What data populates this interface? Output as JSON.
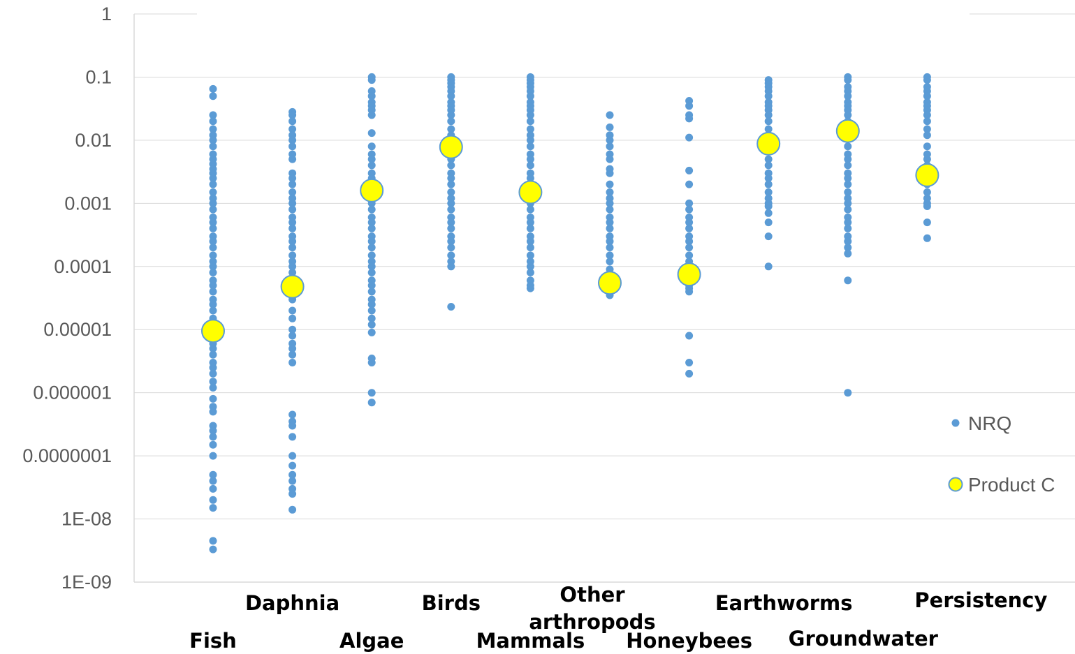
{
  "chart_data": {
    "type": "scatter",
    "y_scale": "log",
    "ylim": [
      1e-09,
      1
    ],
    "y_ticks": [
      "1",
      "0.1",
      "0.01",
      "0.001",
      "0.0001",
      "0.00001",
      "0.000001",
      "0.0000001",
      "1E-08",
      "1E-09"
    ],
    "grid": true,
    "legend_position": "right",
    "categories": [
      "Fish",
      "Daphnia",
      "Algae",
      "Birds",
      "Mammals",
      "Other arthropods",
      "Honeybees",
      "Earthworms",
      "Groundwater",
      "Persistency"
    ],
    "series": [
      {
        "name": "NRQ",
        "color": "#5b9bd5",
        "points": [
          {
            "category": "Fish",
            "values": [
              0.065,
              0.05,
              0.025,
              0.02,
              0.015,
              0.012,
              0.01,
              0.008,
              0.006,
              0.005,
              0.0042,
              0.0035,
              0.003,
              0.0025,
              0.002,
              0.0015,
              0.0012,
              0.001,
              0.0008,
              0.0006,
              0.0005,
              0.0004,
              0.0003,
              0.00025,
              0.0002,
              0.00015,
              0.00012,
              0.0001,
              8e-05,
              6e-05,
              5e-05,
              4e-05,
              3e-05,
              2.5e-05,
              2e-05,
              1.5e-05,
              1.2e-05,
              1e-05,
              8e-06,
              6e-06,
              5e-06,
              4e-06,
              3e-06,
              2.5e-06,
              2e-06,
              1.5e-06,
              1.2e-06,
              8e-07,
              6e-07,
              5e-07,
              3e-07,
              2.5e-07,
              2e-07,
              1.5e-07,
              1e-07,
              5e-08,
              4e-08,
              3e-08,
              2e-08,
              1.5e-08,
              4.5e-09,
              3.3e-09
            ]
          },
          {
            "category": "Daphnia",
            "values": [
              0.028,
              0.025,
              0.02,
              0.015,
              0.012,
              0.01,
              0.008,
              0.006,
              0.005,
              0.003,
              0.0025,
              0.002,
              0.0015,
              0.0012,
              0.001,
              0.0008,
              0.0006,
              0.0005,
              0.0004,
              0.0003,
              0.00025,
              0.0002,
              0.00015,
              0.00012,
              0.0001,
              8e-05,
              6e-05,
              4e-05,
              3e-05,
              2e-05,
              1.5e-05,
              1e-05,
              8e-06,
              6e-06,
              5e-06,
              4e-06,
              3e-06,
              4.5e-07,
              3.5e-07,
              3e-07,
              2e-07,
              1e-07,
              7e-08,
              5e-08,
              4e-08,
              3e-08,
              2.5e-08,
              1.4e-08
            ]
          },
          {
            "category": "Algae",
            "values": [
              0.1,
              0.09,
              0.06,
              0.05,
              0.04,
              0.035,
              0.03,
              0.025,
              0.013,
              0.008,
              0.006,
              0.005,
              0.004,
              0.003,
              0.0025,
              0.002,
              0.0015,
              0.0012,
              0.001,
              0.0008,
              0.0006,
              0.0005,
              0.0004,
              0.0003,
              0.00025,
              0.0002,
              0.00015,
              0.00012,
              0.0001,
              8e-05,
              6e-05,
              5e-05,
              4e-05,
              3e-05,
              2.5e-05,
              2e-05,
              1.5e-05,
              1.2e-05,
              9e-06,
              3.5e-06,
              3e-06,
              1e-06,
              7e-07
            ]
          },
          {
            "category": "Birds",
            "values": [
              0.1,
              0.09,
              0.08,
              0.07,
              0.06,
              0.05,
              0.04,
              0.035,
              0.03,
              0.025,
              0.02,
              0.015,
              0.012,
              0.01,
              0.006,
              0.005,
              0.004,
              0.003,
              0.0025,
              0.002,
              0.0015,
              0.0012,
              0.001,
              0.0008,
              0.0006,
              0.0005,
              0.0004,
              0.0003,
              0.00025,
              0.0002,
              0.00015,
              0.00012,
              0.0001,
              2.3e-05
            ]
          },
          {
            "category": "Mammals",
            "values": [
              0.1,
              0.09,
              0.08,
              0.07,
              0.06,
              0.05,
              0.04,
              0.035,
              0.03,
              0.025,
              0.02,
              0.015,
              0.012,
              0.01,
              0.008,
              0.006,
              0.005,
              0.004,
              0.003,
              0.0025,
              0.002,
              0.001,
              0.0008,
              0.0006,
              0.0005,
              0.0004,
              0.0003,
              0.00025,
              0.0002,
              0.00015,
              0.00012,
              0.0001,
              8e-05,
              6e-05,
              5e-05,
              4.5e-05
            ]
          },
          {
            "category": "Other arthropods",
            "values": [
              0.025,
              0.016,
              0.012,
              0.01,
              0.008,
              0.006,
              0.005,
              0.0035,
              0.003,
              0.002,
              0.0015,
              0.0012,
              0.001,
              0.0008,
              0.0006,
              0.0005,
              0.0004,
              0.0003,
              0.00025,
              0.0002,
              0.00015,
              0.00012,
              9e-05,
              4e-05,
              3.5e-05
            ]
          },
          {
            "category": "Honeybees",
            "values": [
              0.042,
              0.035,
              0.025,
              0.022,
              0.011,
              0.0033,
              0.002,
              0.001,
              0.0008,
              0.0006,
              0.0005,
              0.0004,
              0.0003,
              0.00025,
              0.0002,
              0.00015,
              0.00012,
              0.0001,
              5e-05,
              4.5e-05,
              4e-05,
              8e-06,
              3e-06,
              2e-06
            ]
          },
          {
            "category": "Earthworms",
            "values": [
              0.09,
              0.08,
              0.07,
              0.06,
              0.05,
              0.04,
              0.035,
              0.03,
              0.025,
              0.02,
              0.015,
              0.012,
              0.01,
              0.005,
              0.004,
              0.003,
              0.0025,
              0.002,
              0.0015,
              0.0012,
              0.001,
              0.0009,
              0.0007,
              0.0005,
              0.0003,
              0.0001
            ]
          },
          {
            "category": "Groundwater",
            "values": [
              0.1,
              0.09,
              0.07,
              0.06,
              0.05,
              0.04,
              0.035,
              0.03,
              0.025,
              0.02,
              0.008,
              0.006,
              0.005,
              0.004,
              0.003,
              0.0025,
              0.002,
              0.0015,
              0.0012,
              0.001,
              0.0008,
              0.0006,
              0.0005,
              0.0004,
              0.0003,
              0.00025,
              0.0002,
              0.00016,
              6e-05,
              1e-06
            ]
          },
          {
            "category": "Persistency",
            "values": [
              0.1,
              0.09,
              0.07,
              0.06,
              0.05,
              0.04,
              0.035,
              0.03,
              0.025,
              0.02,
              0.015,
              0.012,
              0.008,
              0.006,
              0.005,
              0.004,
              0.0035,
              0.002,
              0.0015,
              0.0012,
              0.001,
              0.0009,
              0.0005,
              0.00028
            ]
          }
        ]
      },
      {
        "name": "Product C",
        "color": "#ffff00",
        "border_color": "#5b9bd5",
        "points": [
          {
            "category": "Fish",
            "value": 9.5e-06
          },
          {
            "category": "Daphnia",
            "value": 4.8e-05
          },
          {
            "category": "Algae",
            "value": 0.0016
          },
          {
            "category": "Birds",
            "value": 0.0078
          },
          {
            "category": "Mammals",
            "value": 0.0015
          },
          {
            "category": "Other arthropods",
            "value": 5.5e-05
          },
          {
            "category": "Honeybees",
            "value": 7.5e-05
          },
          {
            "category": "Earthworms",
            "value": 0.0088
          },
          {
            "category": "Groundwater",
            "value": 0.014
          },
          {
            "category": "Persistency",
            "value": 0.0028
          }
        ]
      }
    ],
    "legend": [
      "NRQ",
      "Product C"
    ],
    "category_labels": [
      {
        "lines": [
          "Fish"
        ]
      },
      {
        "lines": [
          "Daphnia"
        ]
      },
      {
        "lines": [
          "Algae"
        ]
      },
      {
        "lines": [
          "Birds"
        ]
      },
      {
        "lines": [
          "Mammals"
        ]
      },
      {
        "lines": [
          "Other",
          "arthropods"
        ]
      },
      {
        "lines": [
          "Honeybees"
        ]
      },
      {
        "lines": [
          "Earthworms"
        ]
      },
      {
        "lines": [
          "Groundwater"
        ]
      },
      {
        "lines": [
          "Persistency"
        ]
      }
    ]
  }
}
